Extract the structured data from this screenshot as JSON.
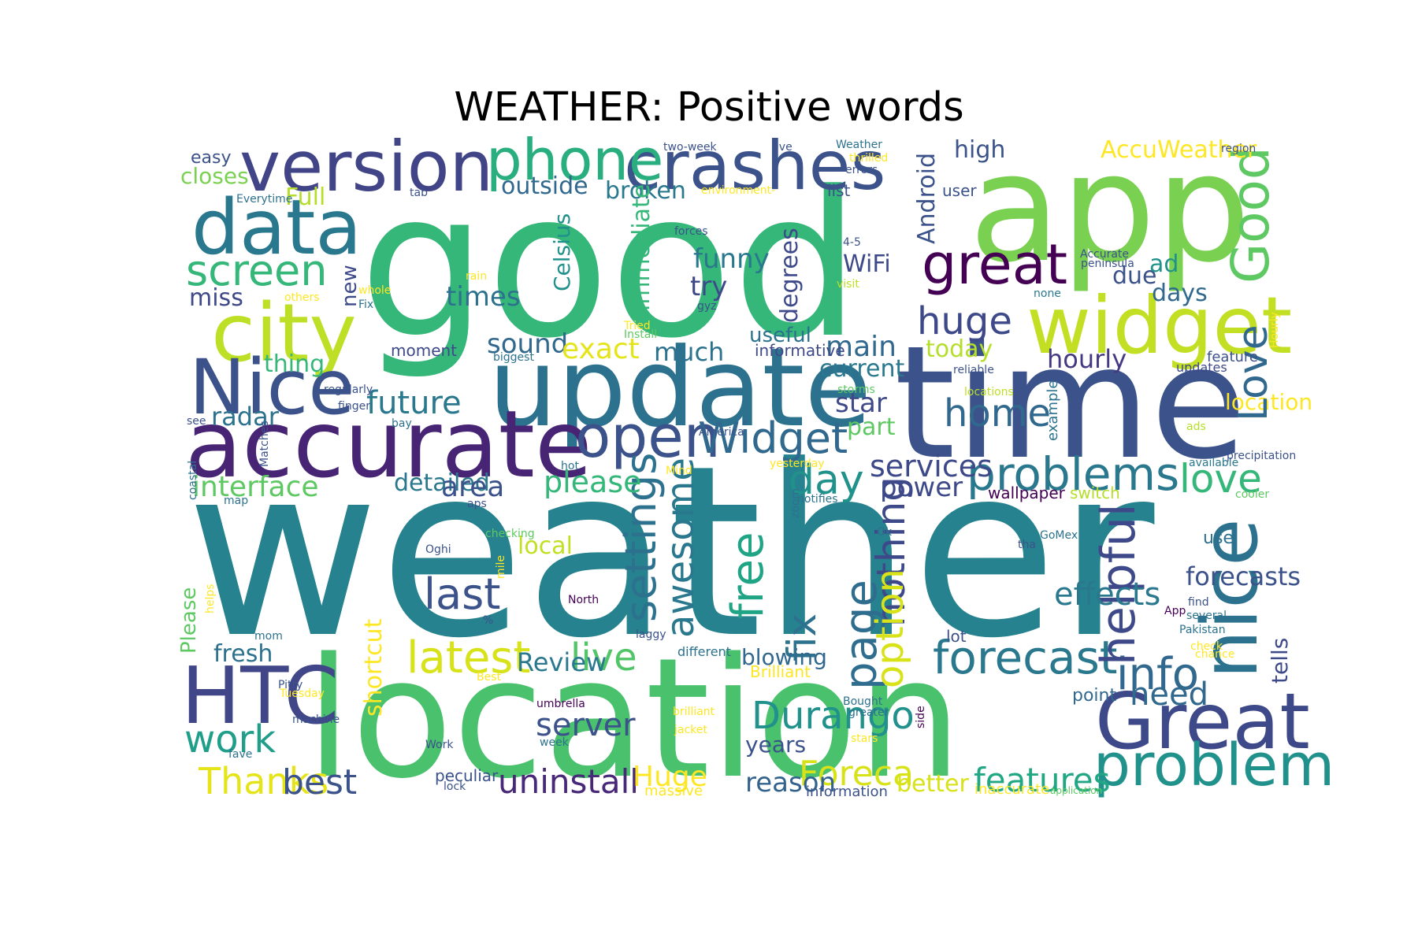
{
  "title": "WEATHER: Positive words",
  "colors": {
    "background": "#ffffff",
    "title": "#000000",
    "palette": [
      "#440154",
      "#472d7b",
      "#3b518b",
      "#2c718e",
      "#21908d",
      "#27ad81",
      "#5cc863",
      "#aadc32",
      "#fde725"
    ]
  },
  "words": [
    {
      "text": "weather",
      "weight": 1.0,
      "color": "#26828e"
    },
    {
      "text": "good",
      "weight": 0.93,
      "color": "#35b779"
    },
    {
      "text": "location",
      "weight": 0.78,
      "color": "#4ac16d"
    },
    {
      "text": "time",
      "weight": 0.72,
      "color": "#3b528b"
    },
    {
      "text": "app",
      "weight": 0.69,
      "color": "#7ad151"
    },
    {
      "text": "update",
      "weight": 0.5,
      "color": "#2c728e"
    },
    {
      "text": "accurate",
      "weight": 0.43,
      "color": "#482475"
    },
    {
      "text": "version",
      "weight": 0.33,
      "color": "#414487"
    },
    {
      "text": "data",
      "weight": 0.35,
      "color": "#2a788e"
    },
    {
      "text": "crashes",
      "weight": 0.32,
      "color": "#3b528b"
    },
    {
      "text": "city",
      "weight": 0.38,
      "color": "#bddf26"
    },
    {
      "text": "widget",
      "weight": 0.37,
      "color": "#c2df23"
    },
    {
      "text": "Nice",
      "weight": 0.36,
      "color": "#3b528b"
    },
    {
      "text": "HTC",
      "weight": 0.37,
      "color": "#404688"
    },
    {
      "text": "Great",
      "weight": 0.36,
      "color": "#3e4989"
    },
    {
      "text": "nice",
      "weight": 0.36,
      "color": "#2c728e"
    },
    {
      "text": "phone",
      "weight": 0.27,
      "color": "#29af7f"
    },
    {
      "text": "Good",
      "weight": 0.25,
      "color": "#5ec962"
    },
    {
      "text": "great",
      "weight": 0.26,
      "color": "#440154"
    },
    {
      "text": "problem",
      "weight": 0.27,
      "color": "#21918c"
    },
    {
      "text": "open",
      "weight": 0.27,
      "color": "#3b528b"
    },
    {
      "text": "screen",
      "weight": 0.2,
      "color": "#35b779"
    },
    {
      "text": "forecast",
      "weight": 0.21,
      "color": "#2a788e"
    },
    {
      "text": "problems",
      "weight": 0.21,
      "color": "#2a788e"
    },
    {
      "text": "location",
      "weight": 0.1,
      "color": "#fde725"
    },
    {
      "text": "info",
      "weight": 0.2,
      "color": "#31688e"
    },
    {
      "text": "latest",
      "weight": 0.21,
      "color": "#d8e219"
    },
    {
      "text": "last",
      "weight": 0.2,
      "color": "#3b528b"
    },
    {
      "text": "helpful",
      "weight": 0.22,
      "color": "#3e4989"
    },
    {
      "text": "Widget",
      "weight": 0.2,
      "color": "#31688e"
    },
    {
      "text": "free",
      "weight": 0.21,
      "color": "#20a486"
    },
    {
      "text": "settings",
      "weight": 0.2,
      "color": "#2c728e"
    },
    {
      "text": "page",
      "weight": 0.21,
      "color": "#2e6d8e"
    },
    {
      "text": "Love",
      "weight": 0.2,
      "color": "#31688e"
    },
    {
      "text": "love",
      "weight": 0.19,
      "color": "#35b779"
    },
    {
      "text": "huge",
      "weight": 0.18,
      "color": "#3e4989"
    },
    {
      "text": "home",
      "weight": 0.17,
      "color": "#31688e"
    },
    {
      "text": "day",
      "weight": 0.18,
      "color": "#21918c"
    },
    {
      "text": "fix",
      "weight": 0.19,
      "color": "#2c728e"
    },
    {
      "text": "nothing",
      "weight": 0.18,
      "color": "#3e4989"
    },
    {
      "text": "awesome",
      "weight": 0.18,
      "color": "#2a788e"
    },
    {
      "text": "option",
      "weight": 0.18,
      "color": "#d8e219"
    },
    {
      "text": "Durango",
      "weight": 0.18,
      "color": "#21918c"
    },
    {
      "text": "live",
      "weight": 0.18,
      "color": "#52c569"
    },
    {
      "text": "work",
      "weight": 0.18,
      "color": "#1f9e89"
    },
    {
      "text": "Thanks",
      "weight": 0.18,
      "color": "#e5e419"
    },
    {
      "text": "best",
      "weight": 0.17,
      "color": "#3b528b"
    },
    {
      "text": "uninstall",
      "weight": 0.17,
      "color": "#482878"
    },
    {
      "text": "features",
      "weight": 0.16,
      "color": "#22a785"
    },
    {
      "text": "Foreca",
      "weight": 0.16,
      "color": "#d8e219"
    },
    {
      "text": "reason",
      "weight": 0.16,
      "color": "#33638d"
    },
    {
      "text": "Huge",
      "weight": 0.13,
      "color": "#fde725"
    },
    {
      "text": "server",
      "weight": 0.14,
      "color": "#3b528b"
    },
    {
      "text": "need",
      "weight": 0.15,
      "color": "#31688e"
    },
    {
      "text": "effects",
      "weight": 0.15,
      "color": "#2a788e"
    },
    {
      "text": "tells",
      "weight": 0.15,
      "color": "#3e4989"
    },
    {
      "text": "forecasts",
      "weight": 0.11,
      "color": "#3b528b"
    },
    {
      "text": "use",
      "weight": 0.12,
      "color": "#2c728e"
    },
    {
      "text": "services",
      "weight": 0.09,
      "color": "#3e4989"
    },
    {
      "text": "power",
      "weight": 0.15,
      "color": "#3e4989"
    },
    {
      "text": "future",
      "weight": 0.13,
      "color": "#2a788e"
    },
    {
      "text": "radar",
      "weight": 0.16,
      "color": "#2c728e"
    },
    {
      "text": "interface",
      "weight": 0.13,
      "color": "#5ec962"
    },
    {
      "text": "detailed",
      "weight": 0.14,
      "color": "#2a788e"
    },
    {
      "text": "area",
      "weight": 0.12,
      "color": "#3b528b"
    },
    {
      "text": "please",
      "weight": 0.14,
      "color": "#35b779"
    },
    {
      "text": "sound",
      "weight": 0.15,
      "color": "#31688e"
    },
    {
      "text": "exact",
      "weight": 0.13,
      "color": "#e5e419"
    },
    {
      "text": "much",
      "weight": 0.14,
      "color": "#2c728e"
    },
    {
      "text": "main",
      "weight": 0.13,
      "color": "#31688e"
    },
    {
      "text": "today",
      "weight": 0.14,
      "color": "#b5de2b"
    },
    {
      "text": "hourly",
      "weight": 0.12,
      "color": "#443983"
    },
    {
      "text": "current",
      "weight": 0.13,
      "color": "#2a788e"
    },
    {
      "text": "star",
      "weight": 0.12,
      "color": "#3e4989"
    },
    {
      "text": "part",
      "weight": 0.13,
      "color": "#5ec962"
    },
    {
      "text": "thing",
      "weight": 0.12,
      "color": "#35b779"
    },
    {
      "text": "miss",
      "weight": 0.12,
      "color": "#3e4989"
    },
    {
      "text": "times",
      "weight": 0.12,
      "color": "#2c728e"
    },
    {
      "text": "Full",
      "weight": 0.13,
      "color": "#b5de2b"
    },
    {
      "text": "outside",
      "weight": 0.12,
      "color": "#31688e"
    },
    {
      "text": "broken",
      "weight": 0.12,
      "color": "#2a788e"
    },
    {
      "text": "closes",
      "weight": 0.12,
      "color": "#7ad151"
    },
    {
      "text": "easy",
      "weight": 0.12,
      "color": "#3b528b"
    },
    {
      "text": "high",
      "weight": 0.09,
      "color": "#3b528b"
    },
    {
      "text": "AccuWeather",
      "weight": 0.12,
      "color": "#fde725"
    },
    {
      "text": "Android",
      "weight": 0.12,
      "color": "#3b528b"
    },
    {
      "text": "degrees",
      "weight": 0.12,
      "color": "#3e4989"
    },
    {
      "text": "immediate",
      "weight": 0.12,
      "color": "#35b779"
    },
    {
      "text": "Celsius",
      "weight": 0.12,
      "color": "#21918c"
    },
    {
      "text": "funny",
      "weight": 0.11,
      "color": "#2a788e"
    },
    {
      "text": "try",
      "weight": 0.13,
      "color": "#3e4989"
    },
    {
      "text": "WiFi",
      "weight": 0.13,
      "color": "#3e4989"
    },
    {
      "text": "due",
      "weight": 0.12,
      "color": "#3b528b"
    },
    {
      "text": "ad",
      "weight": 0.12,
      "color": "#21918c"
    },
    {
      "text": "days",
      "weight": 0.11,
      "color": "#31688e"
    },
    {
      "text": "useful",
      "weight": 0.12,
      "color": "#2c728e"
    },
    {
      "text": "new",
      "weight": 0.11,
      "color": "#3e4989"
    },
    {
      "text": "local",
      "weight": 0.11,
      "color": "#c2df23"
    },
    {
      "text": "Review",
      "weight": 0.12,
      "color": "#2a788e"
    },
    {
      "text": "fresh",
      "weight": 0.13,
      "color": "#2c728e"
    },
    {
      "text": "Please",
      "weight": 0.12,
      "color": "#5ec962"
    },
    {
      "text": "shortcut",
      "weight": 0.1,
      "color": "#fde725"
    },
    {
      "text": "blowing",
      "weight": 0.12,
      "color": "#31688e"
    },
    {
      "text": "years",
      "weight": 0.12,
      "color": "#3b528b"
    },
    {
      "text": "better",
      "weight": 0.11,
      "color": "#d8e219"
    },
    {
      "text": "point",
      "weight": 0.12,
      "color": "#31688e"
    },
    {
      "text": "lot",
      "weight": 0.09,
      "color": "#3b528b"
    },
    {
      "text": "switch",
      "weight": 0.09,
      "color": "#b5de2b"
    },
    {
      "text": "wallpaper",
      "weight": 0.08,
      "color": "#440154"
    },
    {
      "text": "Brilliant",
      "weight": 0.08,
      "color": "#fde725"
    },
    {
      "text": "informative",
      "weight": 0.08,
      "color": "#3e4989"
    },
    {
      "text": "moment",
      "weight": 0.08,
      "color": "#3e4989"
    },
    {
      "text": "example",
      "weight": 0.08,
      "color": "#2c728e"
    },
    {
      "text": "updates",
      "weight": 0.07,
      "color": "#3e4989"
    },
    {
      "text": "feature",
      "weight": 0.06,
      "color": "#3b528b"
    },
    {
      "text": "ads",
      "weight": 0.07,
      "color": "#b5de2b"
    },
    {
      "text": "available",
      "weight": 0.05,
      "color": "#2a788e"
    },
    {
      "text": "precipitation",
      "weight": 0.05,
      "color": "#3b528b"
    },
    {
      "text": "cooler",
      "weight": 0.05,
      "color": "#5ec962"
    },
    {
      "text": "none",
      "weight": 0.05,
      "color": "#2a788e"
    },
    {
      "text": "Hourly",
      "weight": 0.05,
      "color": "#fde725"
    },
    {
      "text": "region",
      "weight": 0.05,
      "color": "#3b528b"
    },
    {
      "text": "Accurate",
      "weight": 0.05,
      "color": "#3b528b"
    },
    {
      "text": "peninsula",
      "weight": 0.05,
      "color": "#3b528b"
    },
    {
      "text": "visit",
      "weight": 0.05,
      "color": "#bddf26"
    },
    {
      "text": "reliable",
      "weight": 0.05,
      "color": "#3b528b"
    },
    {
      "text": "locations",
      "weight": 0.05,
      "color": "#bddf26"
    },
    {
      "text": "user",
      "weight": 0.05,
      "color": "#3b528b"
    },
    {
      "text": "list",
      "weight": 0.07,
      "color": "#3b528b"
    },
    {
      "text": "Weather",
      "weight": 0.07,
      "color": "#2c728e"
    },
    {
      "text": "thrilled",
      "weight": 0.05,
      "color": "#fde725"
    },
    {
      "text": "errors",
      "weight": 0.05,
      "color": "#3b528b"
    },
    {
      "text": "jive",
      "weight": 0.05,
      "color": "#3b528b"
    },
    {
      "text": "two-week",
      "weight": 0.05,
      "color": "#3b528b"
    },
    {
      "text": "environment-",
      "weight": 0.05,
      "color": "#fde725"
    },
    {
      "text": "tab",
      "weight": 0.05,
      "color": "#3b528b"
    },
    {
      "text": "Everytime",
      "weight": 0.05,
      "color": "#2c728e"
    },
    {
      "text": "forces",
      "weight": 0.05,
      "color": "#3b528b"
    },
    {
      "text": "4-5",
      "weight": 0.05,
      "color": "#3b528b"
    },
    {
      "text": "rain",
      "weight": 0.05,
      "color": "#fde725"
    },
    {
      "text": "others",
      "weight": 0.05,
      "color": "#fde725"
    },
    {
      "text": "whole",
      "weight": 0.05,
      "color": "#fde725"
    },
    {
      "text": "Fix",
      "weight": 0.05,
      "color": "#2c728e"
    },
    {
      "text": "gyz",
      "weight": 0.05,
      "color": "#3b528b"
    },
    {
      "text": "Tried",
      "weight": 0.05,
      "color": "#fde725"
    },
    {
      "text": "Install",
      "weight": 0.05,
      "color": "#5ec962"
    },
    {
      "text": "biggest",
      "weight": 0.05,
      "color": "#2c728e"
    },
    {
      "text": "regularly",
      "weight": 0.05,
      "color": "#3b528b"
    },
    {
      "text": "finger",
      "weight": 0.05,
      "color": "#3b528b"
    },
    {
      "text": "see",
      "weight": 0.05,
      "color": "#3b528b"
    },
    {
      "text": "bay",
      "weight": 0.05,
      "color": "#2c728e"
    },
    {
      "text": "storms",
      "weight": 0.05,
      "color": "#5ec962"
    },
    {
      "text": "Matches",
      "weight": 0.05,
      "color": "#3b528b"
    },
    {
      "text": "hot",
      "weight": 0.05,
      "color": "#2c728e"
    },
    {
      "text": "Mind",
      "weight": 0.05,
      "color": "#fde725"
    },
    {
      "text": "America",
      "weight": 0.05,
      "color": "#3b528b"
    },
    {
      "text": "yesterday",
      "weight": 0.05,
      "color": "#fde725"
    },
    {
      "text": "coastal",
      "weight": 0.05,
      "color": "#2c728e"
    },
    {
      "text": "map",
      "weight": 0.05,
      "color": "#2c728e"
    },
    {
      "text": "aps",
      "weight": 0.05,
      "color": "#3b528b"
    },
    {
      "text": "notifies",
      "weight": 0.05,
      "color": "#2c728e"
    },
    {
      "text": "zoom",
      "weight": 0.05,
      "color": "#2c728e"
    },
    {
      "text": "Ok",
      "weight": 0.05,
      "color": "#2c728e"
    },
    {
      "text": "GoMex",
      "weight": 0.05,
      "color": "#2c728e"
    },
    {
      "text": "tha",
      "weight": 0.05,
      "color": "#3b528b"
    },
    {
      "text": "Oghi",
      "weight": 0.05,
      "color": "#3b528b"
    },
    {
      "text": "checking",
      "weight": 0.05,
      "color": "#5ec962"
    },
    {
      "text": "mile",
      "weight": 0.05,
      "color": "#fde725"
    },
    {
      "text": "North",
      "weight": 0.05,
      "color": "#440154"
    },
    {
      "text": "find",
      "weight": 0.05,
      "color": "#3b528b"
    },
    {
      "text": "App",
      "weight": 0.05,
      "color": "#440154"
    },
    {
      "text": "several",
      "weight": 0.05,
      "color": "#2c728e"
    },
    {
      "text": "Pakistan",
      "weight": 0.05,
      "color": "#2c728e"
    },
    {
      "text": "check",
      "weight": 0.05,
      "color": "#fde725"
    },
    {
      "text": "chance",
      "weight": 0.05,
      "color": "#fde725"
    },
    {
      "text": "helps",
      "weight": 0.05,
      "color": "#fde725"
    },
    {
      "text": "%",
      "weight": 0.05,
      "color": "#3b528b"
    },
    {
      "text": "mom",
      "weight": 0.05,
      "color": "#2c728e"
    },
    {
      "text": "laggy",
      "weight": 0.05,
      "color": "#3b528b"
    },
    {
      "text": "different",
      "weight": 0.05,
      "color": "#2c728e"
    },
    {
      "text": "Best",
      "weight": 0.06,
      "color": "#fde725"
    },
    {
      "text": "Pitty",
      "weight": 0.05,
      "color": "#3b528b"
    },
    {
      "text": "Tuesday",
      "weight": 0.05,
      "color": "#fde725"
    },
    {
      "text": "machine",
      "weight": 0.05,
      "color": "#3b528b"
    },
    {
      "text": "umbrella",
      "weight": 0.05,
      "color": "#440154"
    },
    {
      "text": "brilliant",
      "weight": 0.05,
      "color": "#fde725"
    },
    {
      "text": "jacket",
      "weight": 0.05,
      "color": "#fde725"
    },
    {
      "text": "Bought",
      "weight": 0.05,
      "color": "#2c728e"
    },
    {
      "text": "greater",
      "weight": 0.05,
      "color": "#2c728e"
    },
    {
      "text": "side",
      "weight": 0.05,
      "color": "#440154"
    },
    {
      "text": "stars",
      "weight": 0.05,
      "color": "#fde725"
    },
    {
      "text": "Work",
      "weight": 0.05,
      "color": "#3b528b"
    },
    {
      "text": "week",
      "weight": 0.05,
      "color": "#2c728e"
    },
    {
      "text": "fave",
      "weight": 0.05,
      "color": "#2c728e"
    },
    {
      "text": "peculiar",
      "weight": 0.05,
      "color": "#3b528b"
    },
    {
      "text": "lock",
      "weight": 0.07,
      "color": "#3b528b"
    },
    {
      "text": "massive",
      "weight": 0.05,
      "color": "#fde725"
    },
    {
      "text": "information",
      "weight": 0.06,
      "color": "#3b528b"
    },
    {
      "text": "inaccurate",
      "weight": 0.06,
      "color": "#fde725"
    },
    {
      "text": "application",
      "weight": 0.06,
      "color": "#5ec962"
    },
    {
      "text": "Excellent",
      "weight": 0.05,
      "color": "#fde725"
    }
  ]
}
